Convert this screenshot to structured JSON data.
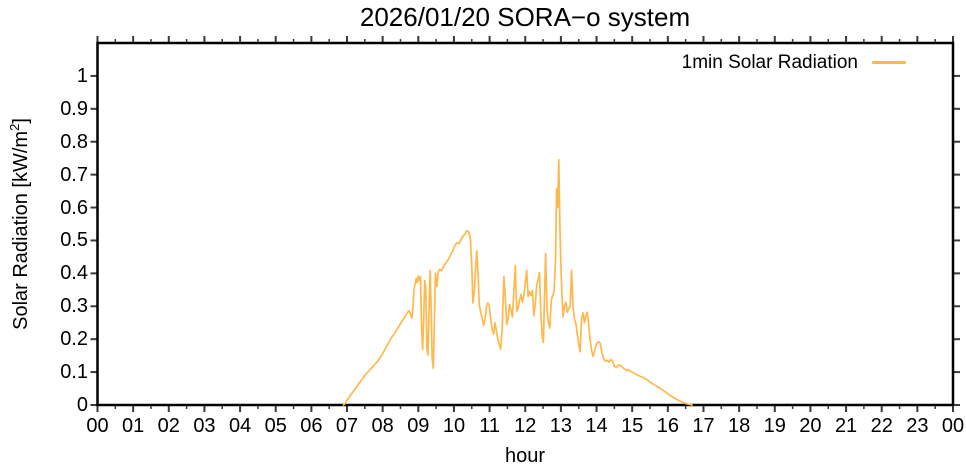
{
  "title": "2026/01/20 SORA−o system",
  "legend": {
    "label": "1min Solar Radiation"
  },
  "axes": {
    "x": {
      "label": "hour"
    },
    "y": {
      "label_prefix": "Solar Radiation [kW/m",
      "label_sup": "2",
      "label_suffix": "]"
    }
  },
  "colors": {
    "line": "#FFB84D",
    "frame": "#000000",
    "tick": "#3a3a3a",
    "text": "#000000",
    "background": "#FFFFFF"
  },
  "chart_data": {
    "type": "line",
    "title": "2026/01/20 SORA−o system",
    "xlabel": "hour",
    "ylabel": "Solar Radiation [kW/m2]",
    "xlim": [
      0,
      24
    ],
    "ylim": [
      0,
      1.1
    ],
    "x_tick_values": [
      0,
      1,
      2,
      3,
      4,
      5,
      6,
      7,
      8,
      9,
      10,
      11,
      12,
      13,
      14,
      15,
      16,
      17,
      18,
      19,
      20,
      21,
      22,
      23,
      24
    ],
    "x_tick_labels": [
      "00",
      "01",
      "02",
      "03",
      "04",
      "05",
      "06",
      "07",
      "08",
      "09",
      "10",
      "11",
      "12",
      "13",
      "14",
      "15",
      "16",
      "17",
      "18",
      "19",
      "20",
      "21",
      "22",
      "23",
      "00"
    ],
    "x_minor_step": 0.5,
    "y_tick_values": [
      0,
      0.1,
      0.2,
      0.3,
      0.4,
      0.5,
      0.6,
      0.7,
      0.8,
      0.9,
      1
    ],
    "y_tick_labels": [
      "0",
      "0.1",
      "0.2",
      "0.3",
      "0.4",
      "0.5",
      "0.6",
      "0.7",
      "0.8",
      "0.9",
      "1"
    ],
    "grid": false,
    "legend_position": "top-right-inside",
    "series": [
      {
        "name": "1min Solar Radiation",
        "color": "#FFB84D",
        "points": [
          [
            6.9,
            0.0
          ],
          [
            6.95,
            0.005
          ],
          [
            7.0,
            0.015
          ],
          [
            7.05,
            0.022
          ],
          [
            7.1,
            0.03
          ],
          [
            7.15,
            0.038
          ],
          [
            7.2,
            0.045
          ],
          [
            7.25,
            0.052
          ],
          [
            7.3,
            0.06
          ],
          [
            7.35,
            0.068
          ],
          [
            7.4,
            0.075
          ],
          [
            7.45,
            0.082
          ],
          [
            7.5,
            0.09
          ],
          [
            7.55,
            0.096
          ],
          [
            7.6,
            0.102
          ],
          [
            7.65,
            0.108
          ],
          [
            7.7,
            0.114
          ],
          [
            7.75,
            0.12
          ],
          [
            7.8,
            0.126
          ],
          [
            7.85,
            0.132
          ],
          [
            7.9,
            0.14
          ],
          [
            7.95,
            0.148
          ],
          [
            8.0,
            0.156
          ],
          [
            8.05,
            0.166
          ],
          [
            8.1,
            0.176
          ],
          [
            8.15,
            0.186
          ],
          [
            8.2,
            0.196
          ],
          [
            8.25,
            0.205
          ],
          [
            8.3,
            0.212
          ],
          [
            8.35,
            0.22
          ],
          [
            8.4,
            0.229
          ],
          [
            8.45,
            0.238
          ],
          [
            8.5,
            0.247
          ],
          [
            8.55,
            0.256
          ],
          [
            8.6,
            0.264
          ],
          [
            8.65,
            0.272
          ],
          [
            8.7,
            0.282
          ],
          [
            8.74,
            0.286
          ],
          [
            8.78,
            0.276
          ],
          [
            8.82,
            0.264
          ],
          [
            8.85,
            0.3
          ],
          [
            8.88,
            0.352
          ],
          [
            8.91,
            0.368
          ],
          [
            8.94,
            0.384
          ],
          [
            8.97,
            0.372
          ],
          [
            9.0,
            0.392
          ],
          [
            9.03,
            0.378
          ],
          [
            9.06,
            0.39
          ],
          [
            9.09,
            0.24
          ],
          [
            9.12,
            0.168
          ],
          [
            9.15,
            0.262
          ],
          [
            9.18,
            0.378
          ],
          [
            9.21,
            0.356
          ],
          [
            9.24,
            0.17
          ],
          [
            9.27,
            0.152
          ],
          [
            9.3,
            0.285
          ],
          [
            9.33,
            0.408
          ],
          [
            9.36,
            0.3
          ],
          [
            9.39,
            0.14
          ],
          [
            9.42,
            0.112
          ],
          [
            9.45,
            0.25
          ],
          [
            9.48,
            0.4
          ],
          [
            9.52,
            0.36
          ],
          [
            9.56,
            0.405
          ],
          [
            9.6,
            0.412
          ],
          [
            9.65,
            0.408
          ],
          [
            9.7,
            0.42
          ],
          [
            9.75,
            0.428
          ],
          [
            9.8,
            0.436
          ],
          [
            9.85,
            0.444
          ],
          [
            9.9,
            0.455
          ],
          [
            9.95,
            0.464
          ],
          [
            10.0,
            0.478
          ],
          [
            10.05,
            0.488
          ],
          [
            10.1,
            0.494
          ],
          [
            10.15,
            0.49
          ],
          [
            10.2,
            0.504
          ],
          [
            10.25,
            0.512
          ],
          [
            10.3,
            0.518
          ],
          [
            10.36,
            0.53
          ],
          [
            10.42,
            0.525
          ],
          [
            10.46,
            0.505
          ],
          [
            10.5,
            0.42
          ],
          [
            10.53,
            0.31
          ],
          [
            10.57,
            0.345
          ],
          [
            10.61,
            0.42
          ],
          [
            10.64,
            0.468
          ],
          [
            10.68,
            0.39
          ],
          [
            10.71,
            0.305
          ],
          [
            10.75,
            0.282
          ],
          [
            10.79,
            0.265
          ],
          [
            10.83,
            0.242
          ],
          [
            10.87,
            0.26
          ],
          [
            10.91,
            0.298
          ],
          [
            10.95,
            0.31
          ],
          [
            10.99,
            0.302
          ],
          [
            11.03,
            0.262
          ],
          [
            11.07,
            0.23
          ],
          [
            11.11,
            0.215
          ],
          [
            11.15,
            0.25
          ],
          [
            11.19,
            0.225
          ],
          [
            11.23,
            0.2
          ],
          [
            11.27,
            0.185
          ],
          [
            11.31,
            0.17
          ],
          [
            11.35,
            0.23
          ],
          [
            11.4,
            0.39
          ],
          [
            11.44,
            0.33
          ],
          [
            11.48,
            0.245
          ],
          [
            11.52,
            0.26
          ],
          [
            11.56,
            0.305
          ],
          [
            11.6,
            0.29
          ],
          [
            11.64,
            0.267
          ],
          [
            11.68,
            0.34
          ],
          [
            11.72,
            0.424
          ],
          [
            11.76,
            0.285
          ],
          [
            11.8,
            0.295
          ],
          [
            11.84,
            0.318
          ],
          [
            11.88,
            0.336
          ],
          [
            11.92,
            0.312
          ],
          [
            11.96,
            0.33
          ],
          [
            12.0,
            0.37
          ],
          [
            12.04,
            0.409
          ],
          [
            12.08,
            0.33
          ],
          [
            12.12,
            0.345
          ],
          [
            12.16,
            0.332
          ],
          [
            12.2,
            0.348
          ],
          [
            12.24,
            0.272
          ],
          [
            12.28,
            0.305
          ],
          [
            12.32,
            0.364
          ],
          [
            12.36,
            0.382
          ],
          [
            12.4,
            0.402
          ],
          [
            12.44,
            0.27
          ],
          [
            12.48,
            0.206
          ],
          [
            12.51,
            0.19
          ],
          [
            12.54,
            0.33
          ],
          [
            12.57,
            0.46
          ],
          [
            12.61,
            0.292
          ],
          [
            12.65,
            0.25
          ],
          [
            12.69,
            0.234
          ],
          [
            12.73,
            0.318
          ],
          [
            12.77,
            0.332
          ],
          [
            12.81,
            0.348
          ],
          [
            12.85,
            0.44
          ],
          [
            12.88,
            0.658
          ],
          [
            12.91,
            0.6
          ],
          [
            12.94,
            0.745
          ],
          [
            12.97,
            0.555
          ],
          [
            13.0,
            0.42
          ],
          [
            13.03,
            0.33
          ],
          [
            13.06,
            0.268
          ],
          [
            13.1,
            0.3
          ],
          [
            13.14,
            0.312
          ],
          [
            13.18,
            0.282
          ],
          [
            13.22,
            0.292
          ],
          [
            13.26,
            0.302
          ],
          [
            13.3,
            0.41
          ],
          [
            13.34,
            0.3
          ],
          [
            13.38,
            0.262
          ],
          [
            13.42,
            0.248
          ],
          [
            13.46,
            0.215
          ],
          [
            13.5,
            0.186
          ],
          [
            13.54,
            0.162
          ],
          [
            13.58,
            0.262
          ],
          [
            13.62,
            0.28
          ],
          [
            13.66,
            0.25
          ],
          [
            13.7,
            0.272
          ],
          [
            13.74,
            0.282
          ],
          [
            13.78,
            0.242
          ],
          [
            13.82,
            0.198
          ],
          [
            13.86,
            0.166
          ],
          [
            13.9,
            0.148
          ],
          [
            13.95,
            0.166
          ],
          [
            14.0,
            0.186
          ],
          [
            14.05,
            0.192
          ],
          [
            14.1,
            0.188
          ],
          [
            14.15,
            0.16
          ],
          [
            14.2,
            0.14
          ],
          [
            14.25,
            0.133
          ],
          [
            14.3,
            0.136
          ],
          [
            14.35,
            0.13
          ],
          [
            14.4,
            0.138
          ],
          [
            14.45,
            0.134
          ],
          [
            14.5,
            0.118
          ],
          [
            14.55,
            0.114
          ],
          [
            14.6,
            0.12
          ],
          [
            14.65,
            0.122
          ],
          [
            14.7,
            0.118
          ],
          [
            14.75,
            0.112
          ],
          [
            14.8,
            0.108
          ],
          [
            14.85,
            0.104
          ],
          [
            14.9,
            0.108
          ],
          [
            14.95,
            0.102
          ],
          [
            15.0,
            0.1
          ],
          [
            15.1,
            0.094
          ],
          [
            15.2,
            0.088
          ],
          [
            15.3,
            0.084
          ],
          [
            15.4,
            0.078
          ],
          [
            15.5,
            0.07
          ],
          [
            15.6,
            0.063
          ],
          [
            15.7,
            0.056
          ],
          [
            15.8,
            0.05
          ],
          [
            15.9,
            0.042
          ],
          [
            16.0,
            0.034
          ],
          [
            16.1,
            0.027
          ],
          [
            16.2,
            0.02
          ],
          [
            16.3,
            0.014
          ],
          [
            16.4,
            0.009
          ],
          [
            16.5,
            0.005
          ],
          [
            16.6,
            0.002
          ],
          [
            16.68,
            0.0
          ]
        ]
      }
    ]
  }
}
